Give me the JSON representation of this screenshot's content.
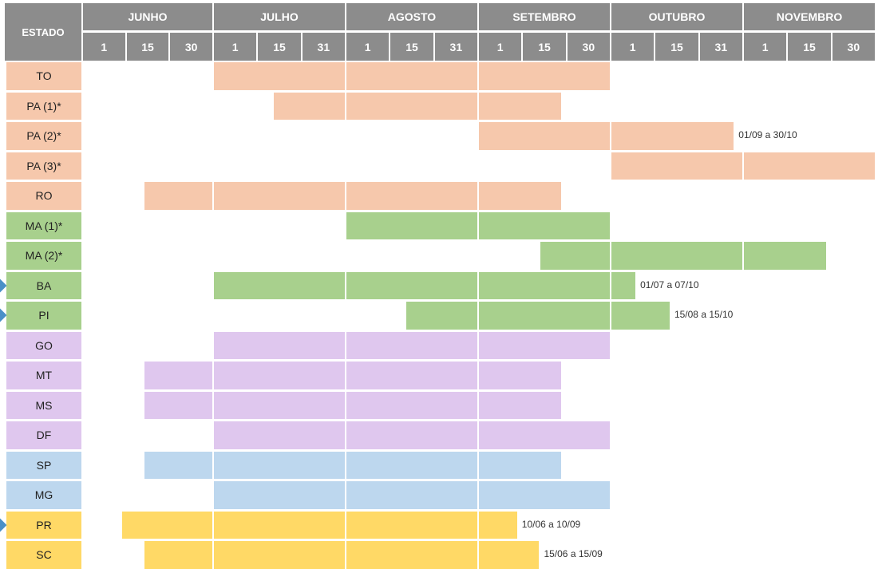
{
  "header": {
    "estado_label": "ESTADO",
    "months": [
      "JUNHO",
      "JULHO",
      "AGOSTO",
      "SETEMBRO",
      "OUTUBRO",
      "NOVEMBRO"
    ],
    "days": [
      [
        "1",
        "15",
        "30"
      ],
      [
        "1",
        "15",
        "31"
      ],
      [
        "1",
        "15",
        "31"
      ],
      [
        "1",
        "15",
        "30"
      ],
      [
        "1",
        "15",
        "31"
      ],
      [
        "1",
        "15",
        "30"
      ]
    ]
  },
  "colors": {
    "orange": "#f6c8ac",
    "green": "#a8d08d",
    "purple": "#dfc7ee",
    "blue": "#bdd7ee",
    "yellow": "#ffd966",
    "marker": "#4a90c8"
  },
  "rows": [
    {
      "state": "TO",
      "group": "orange",
      "start": "07-01",
      "end": "09-30",
      "note": "",
      "marker": false
    },
    {
      "state": "PA (1)*",
      "group": "orange",
      "start": "07-15",
      "end": "09-20",
      "note": "",
      "marker": false
    },
    {
      "state": "PA (2)*",
      "group": "orange",
      "start": "09-01",
      "end": "10-30",
      "note": "01/09 a 30/10",
      "marker": false
    },
    {
      "state": "PA (3)*",
      "group": "orange",
      "start": "10-01",
      "end": "11-30",
      "note": "",
      "marker": false
    },
    {
      "state": "RO",
      "group": "orange",
      "start": "06-15",
      "end": "09-20",
      "note": "",
      "marker": false
    },
    {
      "state": "MA (1)*",
      "group": "green",
      "start": "08-01",
      "end": "09-30",
      "note": "",
      "marker": false
    },
    {
      "state": "MA (2)*",
      "group": "green",
      "start": "09-15",
      "end": "11-20",
      "note": "",
      "marker": false
    },
    {
      "state": "BA",
      "group": "green",
      "start": "07-01",
      "end": "10-07",
      "note": "01/07 a 07/10",
      "marker": true
    },
    {
      "state": "PI",
      "group": "green",
      "start": "08-15",
      "end": "10-15",
      "note": "15/08 a 15/10",
      "marker": true
    },
    {
      "state": "GO",
      "group": "purple",
      "start": "07-01",
      "end": "09-30",
      "note": "",
      "marker": false
    },
    {
      "state": "MT",
      "group": "purple",
      "start": "06-15",
      "end": "09-20",
      "note": "",
      "marker": false
    },
    {
      "state": "MS",
      "group": "purple",
      "start": "06-15",
      "end": "09-20",
      "note": "",
      "marker": false
    },
    {
      "state": "DF",
      "group": "purple",
      "start": "07-01",
      "end": "09-30",
      "note": "",
      "marker": false
    },
    {
      "state": "SP",
      "group": "blue",
      "start": "06-15",
      "end": "09-20",
      "note": "",
      "marker": false
    },
    {
      "state": "MG",
      "group": "blue",
      "start": "07-01",
      "end": "09-30",
      "note": "",
      "marker": false
    },
    {
      "state": "PR",
      "group": "yellow",
      "start": "06-10",
      "end": "09-10",
      "note": "10/06 a 10/09",
      "marker": true
    },
    {
      "state": "SC",
      "group": "yellow",
      "start": "06-15",
      "end": "09-15",
      "note": "15/06 a 15/09",
      "marker": false
    }
  ]
}
